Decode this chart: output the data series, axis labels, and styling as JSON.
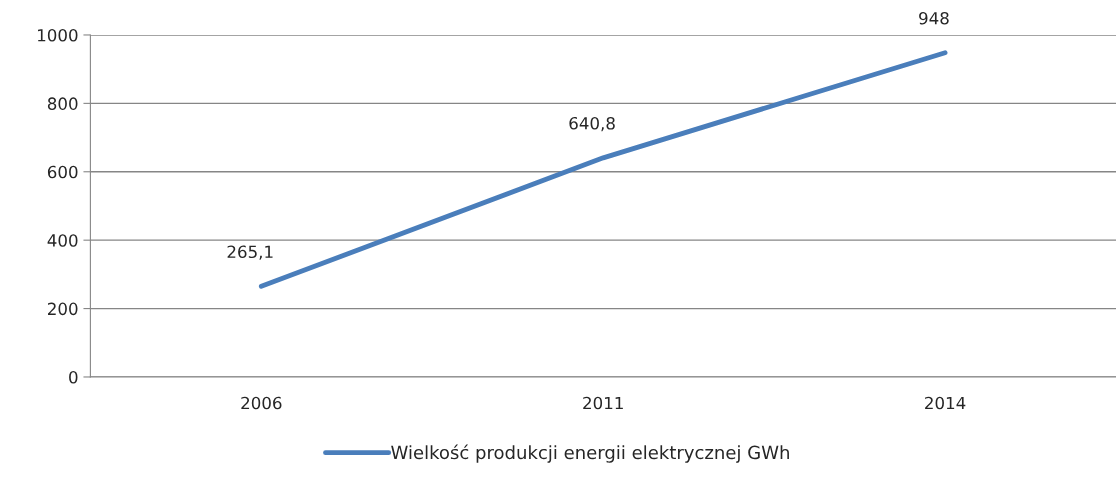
{
  "chart_data": {
    "type": "line",
    "categories": [
      "2006",
      "2011",
      "2014"
    ],
    "series": [
      {
        "name": "Wielkość produkcji energii elektrycznej GWh",
        "color": "#4a7ebb",
        "values": [
          265.1,
          640.8,
          948
        ],
        "value_labels": [
          "265,1",
          "640,8",
          "948"
        ]
      }
    ],
    "ylim": [
      0,
      1000
    ],
    "yticks": [
      0,
      200,
      400,
      600,
      800,
      1000
    ],
    "grid": "y",
    "legend": "bottom",
    "marker": "none",
    "line_style": "solid"
  }
}
